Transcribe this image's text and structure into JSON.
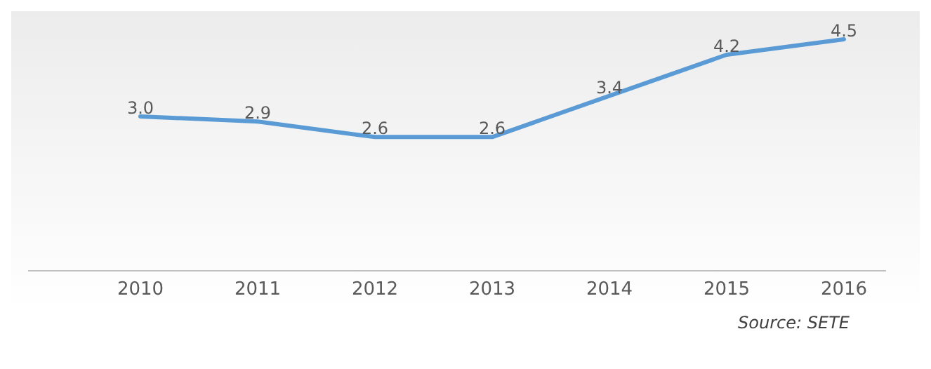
{
  "chart_data": {
    "type": "line",
    "categories": [
      "2010",
      "2011",
      "2012",
      "2013",
      "2014",
      "2015",
      "2016"
    ],
    "series": [
      {
        "color": "#5b9bd5",
        "values": [
          3.0,
          2.9,
          2.6,
          2.6,
          3.4,
          4.2,
          4.5
        ],
        "value_labels": [
          "3.0",
          "2.9",
          "2.6",
          "2.6",
          "3.4",
          "4.2",
          "4.5"
        ]
      }
    ],
    "marker": "none",
    "line_style": "solid",
    "annotations": [
      "Source: SETE"
    ]
  }
}
